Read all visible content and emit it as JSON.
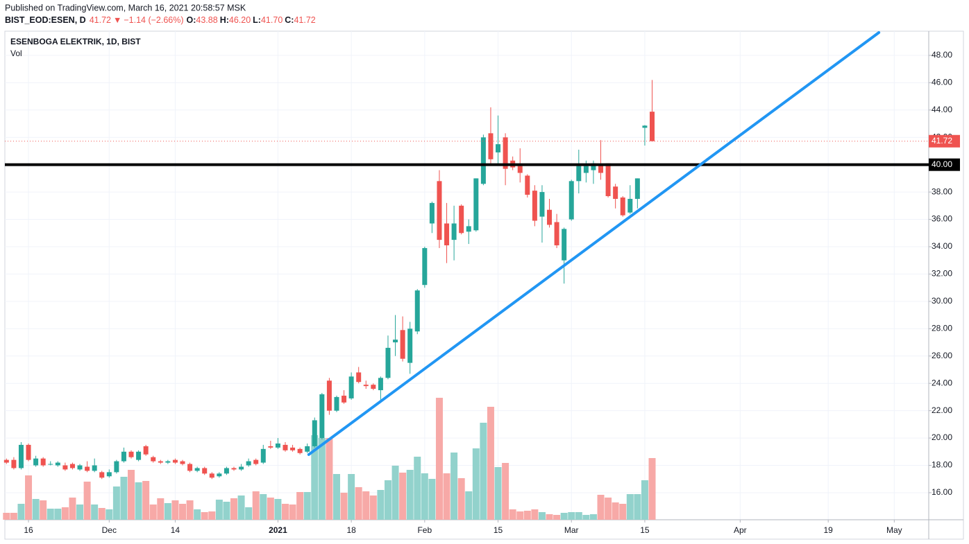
{
  "header": {
    "published": "Published on TradingView.com, March 16, 2021 20:58:57 MSK",
    "symbol": "BIST_EOD:ESEN, D",
    "price": "41.72",
    "arrow": "▼",
    "change": "−1.14 (−2.66%)",
    "ohlc": [
      {
        "label": "O:",
        "value": "43.88"
      },
      {
        "label": "H:",
        "value": "46.20"
      },
      {
        "label": "L:",
        "value": "41.70"
      },
      {
        "label": "C:",
        "value": "41.72"
      }
    ]
  },
  "chart_data": {
    "type": "candlestick",
    "title": "ESENBOGA ELEKTRIK, 1D, BIST",
    "volume_name": "Vol",
    "up_color": "#26a69a",
    "down_color": "#ef5350",
    "volume_up_color": "#92d2cc",
    "volume_down_color": "#f7a9a7",
    "xlim": [
      -0.22,
      125.7
    ],
    "xticks": [
      {
        "value": 3,
        "label": "16"
      },
      {
        "value": 14,
        "label": "Dec"
      },
      {
        "value": 23,
        "label": "14"
      },
      {
        "value": 37,
        "label": "2021"
      },
      {
        "value": 47,
        "label": "18"
      },
      {
        "value": 57,
        "label": "Feb"
      },
      {
        "value": 67,
        "label": "15"
      },
      {
        "value": 77,
        "label": "Mar"
      },
      {
        "value": 87,
        "label": "15"
      },
      {
        "value": 100,
        "label": "Apr"
      },
      {
        "value": 112,
        "label": "19"
      },
      {
        "value": 121,
        "label": "May"
      }
    ],
    "ylim": [
      14.02,
      49.77
    ],
    "yticks": [
      {
        "value": 16,
        "label": "16.00"
      },
      {
        "value": 18,
        "label": "18.00"
      },
      {
        "value": 20,
        "label": "20.00"
      },
      {
        "value": 22,
        "label": "22.00"
      },
      {
        "value": 24,
        "label": "24.00"
      },
      {
        "value": 26,
        "label": "26.00"
      },
      {
        "value": 28,
        "label": "28.00"
      },
      {
        "value": 30,
        "label": "30.00"
      },
      {
        "value": 32,
        "label": "32.00"
      },
      {
        "value": 34,
        "label": "34.00"
      },
      {
        "value": 36,
        "label": "36.00"
      },
      {
        "value": 38,
        "label": "38.00"
      },
      {
        "value": 42,
        "label": "42.00"
      },
      {
        "value": 44,
        "label": "44.00"
      },
      {
        "value": 46,
        "label": "46.00"
      },
      {
        "value": 48,
        "label": "48.00"
      }
    ],
    "grid": true,
    "open": [
      18.4,
      18.4,
      17.8,
      19.5,
      18.0,
      18.5,
      18.1,
      18.0,
      18.0,
      18.1,
      17.7,
      17.9,
      17.6,
      17.5,
      17.2,
      17.5,
      18.3,
      19.0,
      18.4,
      19.4,
      18.6,
      18.3,
      18.2,
      18.4,
      18.3,
      18.1,
      17.6,
      17.8,
      17.4,
      17.2,
      17.4,
      17.8,
      17.7,
      18.0,
      18.4,
      18.2,
      19.4,
      19.3,
      19.5,
      19.3,
      19.2,
      19.0,
      19.4,
      20.0,
      24.2,
      22.0,
      23.1,
      22.9,
      24.8,
      23.9,
      23.9,
      23.5,
      24.4,
      27.0,
      27.9,
      25.5,
      27.8,
      31.2,
      35.7,
      38.8,
      35.7,
      34.5,
      37.0,
      35.1,
      35.2,
      38.6,
      42.3,
      40.9,
      42.0,
      40.3,
      39.9,
      39.2,
      38.1,
      36.2,
      36.7,
      35.8,
      33.0,
      36.0,
      38.8,
      39.4,
      39.6,
      40.0,
      40.1,
      38.4,
      37.6,
      36.5,
      37.5,
      42.7,
      43.88
    ],
    "high": [
      18.5,
      18.6,
      19.7,
      19.6,
      18.7,
      18.6,
      18.3,
      18.3,
      18.2,
      18.2,
      18.1,
      18.3,
      18.5,
      17.6,
      17.7,
      18.4,
      19.3,
      19.1,
      19.1,
      19.5,
      18.7,
      18.4,
      18.4,
      18.5,
      18.4,
      18.2,
      17.9,
      17.9,
      17.5,
      17.5,
      17.9,
      17.9,
      18.1,
      18.5,
      18.5,
      19.5,
      19.8,
      20.0,
      19.7,
      19.5,
      19.3,
      19.6,
      21.5,
      23.3,
      24.4,
      23.1,
      23.5,
      24.8,
      25.2,
      24.2,
      24.0,
      24.5,
      27.5,
      29.0,
      28.9,
      28.5,
      30.9,
      34.0,
      37.3,
      39.6,
      37.2,
      37.0,
      37.1,
      36.0,
      39.0,
      42.2,
      44.2,
      43.6,
      42.3,
      40.6,
      41.2,
      39.3,
      38.5,
      38.5,
      37.5,
      36.4,
      35.4,
      38.9,
      41.1,
      40.3,
      40.3,
      41.8,
      40.1,
      38.6,
      37.7,
      38.5,
      39.0,
      42.9,
      46.2
    ],
    "low": [
      18.1,
      17.7,
      17.7,
      18.3,
      17.9,
      17.9,
      18.0,
      17.9,
      17.6,
      17.7,
      17.6,
      17.5,
      17.5,
      17.0,
      17.1,
      17.4,
      18.2,
      18.5,
      18.3,
      18.7,
      18.2,
      18.1,
      18.1,
      18.1,
      18.0,
      17.5,
      17.5,
      17.3,
      17.0,
      17.1,
      17.3,
      17.6,
      17.6,
      17.9,
      18.0,
      18.1,
      19.2,
      19.2,
      19.0,
      19.0,
      18.8,
      18.9,
      19.3,
      19.9,
      21.7,
      21.9,
      22.5,
      22.8,
      24.0,
      23.6,
      23.5,
      22.8,
      24.3,
      26.0,
      25.6,
      24.7,
      27.6,
      31.0,
      35.0,
      33.9,
      32.8,
      33.0,
      34.9,
      34.2,
      35.1,
      38.5,
      40.0,
      40.0,
      38.5,
      39.6,
      38.7,
      37.6,
      35.5,
      34.3,
      35.4,
      33.9,
      31.3,
      35.9,
      37.9,
      38.7,
      38.6,
      38.9,
      37.6,
      36.8,
      36.2,
      36.4,
      36.8,
      41.4,
      41.7
    ],
    "close": [
      18.2,
      17.8,
      19.5,
      18.4,
      18.5,
      18.0,
      18.1,
      18.2,
      17.7,
      17.8,
      18.0,
      17.6,
      18.0,
      17.1,
      17.5,
      18.3,
      19.0,
      18.6,
      19.0,
      18.8,
      18.3,
      18.2,
      18.3,
      18.2,
      18.1,
      17.6,
      17.8,
      17.4,
      17.1,
      17.4,
      17.8,
      17.7,
      17.9,
      18.3,
      18.1,
      19.2,
      19.3,
      19.6,
      19.1,
      19.1,
      18.9,
      19.4,
      21.3,
      23.2,
      22.0,
      23.0,
      22.6,
      24.5,
      24.1,
      23.8,
      23.6,
      24.4,
      26.6,
      27.2,
      25.8,
      28.0,
      30.8,
      33.9,
      37.2,
      34.5,
      34.1,
      35.7,
      35.0,
      35.5,
      39.0,
      42.0,
      40.4,
      41.5,
      39.7,
      39.8,
      39.4,
      37.8,
      35.9,
      38.0,
      35.6,
      34.1,
      35.3,
      38.8,
      39.9,
      39.9,
      40.1,
      39.4,
      37.7,
      37.5,
      36.3,
      37.5,
      39.0,
      42.86,
      41.72
    ],
    "volume_lim": [
      0,
      180
    ],
    "volume": [
      10,
      10,
      23,
      64,
      30,
      28,
      16,
      16,
      18,
      32,
      22,
      55,
      22,
      17,
      15,
      48,
      62,
      72,
      54,
      56,
      22,
      31,
      24,
      28,
      23,
      28,
      15,
      11,
      12,
      29,
      26,
      31,
      35,
      18,
      41,
      37,
      32,
      30,
      23,
      22,
      40,
      40,
      122,
      118,
      118,
      66,
      39,
      66,
      47,
      41,
      35,
      43,
      57,
      78,
      68,
      72,
      91,
      67,
      59,
      176,
      67,
      97,
      60,
      41,
      103,
      140,
      163,
      76,
      82,
      15,
      12,
      13,
      15,
      11,
      8,
      7,
      10,
      11,
      11,
      7,
      8,
      36,
      32,
      25,
      23,
      37,
      37,
      57,
      89
    ],
    "last_price": 41.72,
    "level": {
      "value": 40,
      "label": "40.00"
    },
    "trendline": {
      "x": [
        41.2,
        118.9
      ],
      "y": [
        18.79,
        49.67
      ],
      "color": "#2196f3"
    }
  }
}
